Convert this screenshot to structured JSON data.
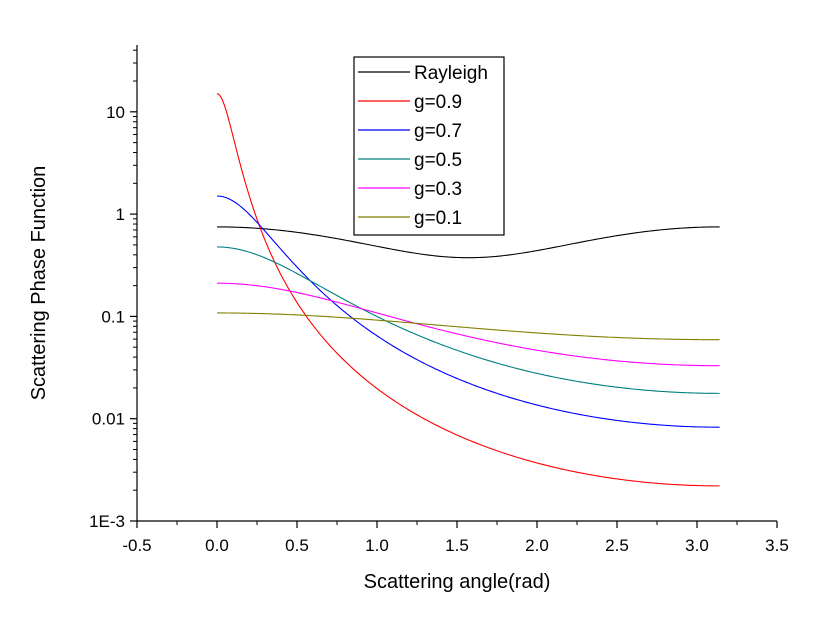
{
  "chart_data": {
    "type": "line",
    "title": "",
    "xlabel": "Scattering angle(rad)",
    "ylabel": "Scattering Phase Function",
    "xlim": [
      -0.5,
      3.5
    ],
    "ylim": [
      0.001,
      45
    ],
    "yscale": "log",
    "grid": false,
    "legend_position": "top-center",
    "x_ticks": [
      -0.5,
      0.0,
      0.5,
      1.0,
      1.5,
      2.0,
      2.5,
      3.0,
      3.5
    ],
    "x_tick_labels": [
      "-0.5",
      "0.0",
      "0.5",
      "1.0",
      "1.5",
      "2.0",
      "2.5",
      "3.0",
      "3.5"
    ],
    "y_ticks": [
      0.001,
      0.01,
      0.1,
      1,
      10
    ],
    "y_tick_labels": [
      "1E-3",
      "0.01",
      "0.1",
      "1",
      "10"
    ],
    "series": [
      {
        "name": "Rayleigh",
        "color": "#000000",
        "kind": "rayleigh"
      },
      {
        "name": "g=0.9",
        "color": "#ff0000",
        "kind": "hg",
        "g": 0.9
      },
      {
        "name": "g=0.7",
        "color": "#0000ff",
        "kind": "hg",
        "g": 0.7
      },
      {
        "name": "g=0.5",
        "color": "#008080",
        "kind": "hg",
        "g": 0.5
      },
      {
        "name": "g=0.3",
        "color": "#ff00ff",
        "kind": "hg",
        "g": 0.3
      },
      {
        "name": "g=0.1",
        "color": "#808000",
        "kind": "hg",
        "g": 0.1
      }
    ],
    "x_range": [
      0,
      3.14159
    ]
  }
}
